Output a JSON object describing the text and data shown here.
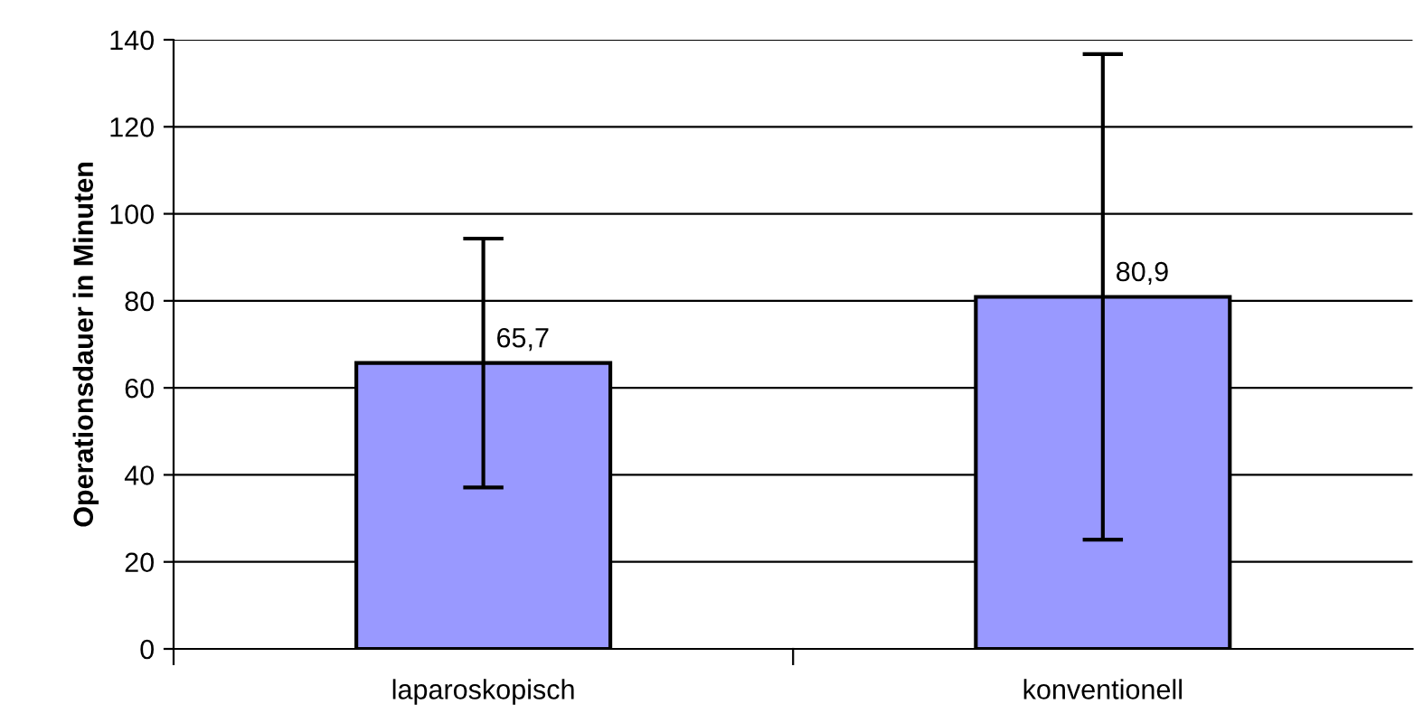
{
  "chart_data": {
    "type": "bar",
    "ylabel": "Operationsdauer in Minuten",
    "categories": [
      "laparoskopisch",
      "konventionell"
    ],
    "values": [
      65.7,
      80.9
    ],
    "errors": [
      28.6,
      55.8
    ],
    "value_labels": [
      "65,7",
      "80,9"
    ],
    "color": "#9999ff",
    "ylim": [
      0,
      140
    ],
    "yticks": [
      0,
      20,
      40,
      60,
      80,
      100,
      120,
      140
    ],
    "grid": "y",
    "legend": false
  }
}
